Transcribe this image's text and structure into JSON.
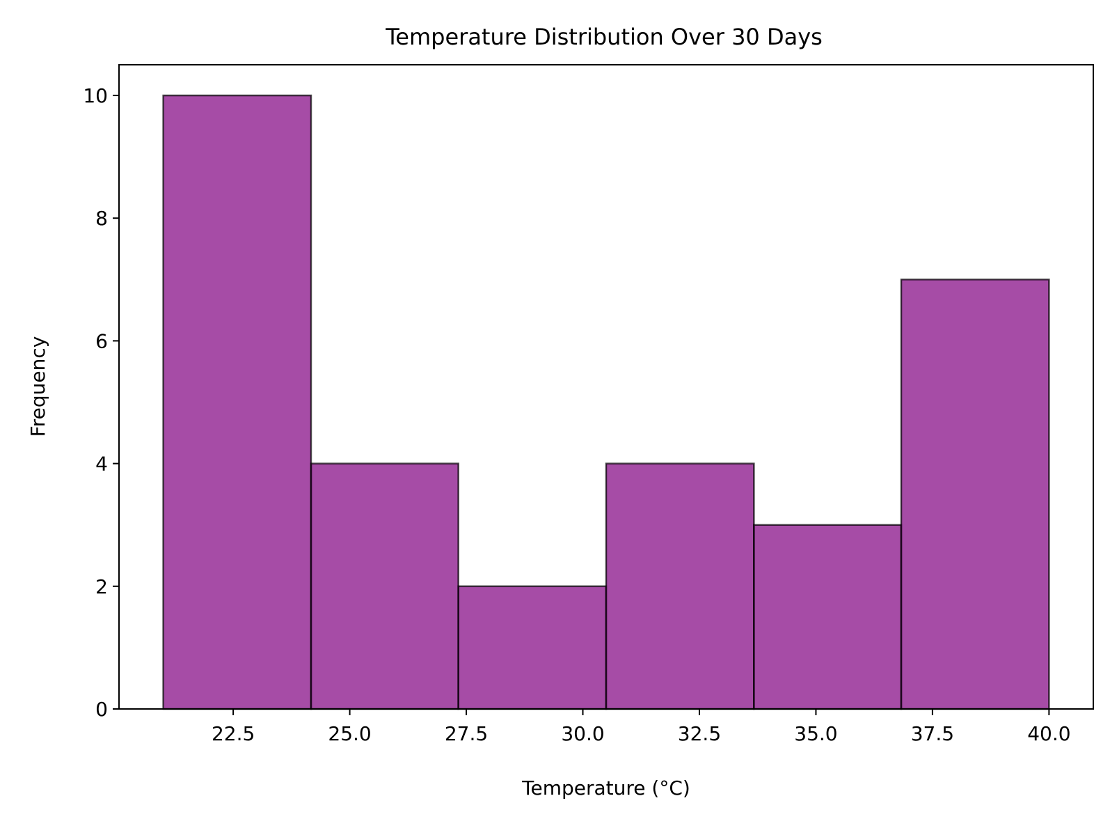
{
  "chart_data": {
    "type": "bar",
    "title": "Temperature Distribution Over 30 Days",
    "xlabel": "Temperature (°C)",
    "ylabel": "Frequency",
    "bin_edges": [
      21.0,
      24.17,
      27.33,
      30.5,
      33.67,
      36.83,
      40.0
    ],
    "values": [
      10,
      4,
      2,
      4,
      3,
      7
    ],
    "xlim": [
      20.05,
      40.95
    ],
    "ylim": [
      0,
      10.5
    ],
    "x_ticks": [
      {
        "value": 22.5,
        "label": "22.5"
      },
      {
        "value": 25.0,
        "label": "25.0"
      },
      {
        "value": 27.5,
        "label": "27.5"
      },
      {
        "value": 30.0,
        "label": "30.0"
      },
      {
        "value": 32.5,
        "label": "32.5"
      },
      {
        "value": 35.0,
        "label": "35.0"
      },
      {
        "value": 37.5,
        "label": "37.5"
      },
      {
        "value": 40.0,
        "label": "40.0"
      }
    ],
    "y_ticks": [
      {
        "value": 0,
        "label": "0"
      },
      {
        "value": 2,
        "label": "2"
      },
      {
        "value": 4,
        "label": "4"
      },
      {
        "value": 6,
        "label": "6"
      },
      {
        "value": 8,
        "label": "8"
      },
      {
        "value": 10,
        "label": "10"
      }
    ],
    "grid": false,
    "bar_color": "#800080",
    "edge_color": "#000000"
  }
}
